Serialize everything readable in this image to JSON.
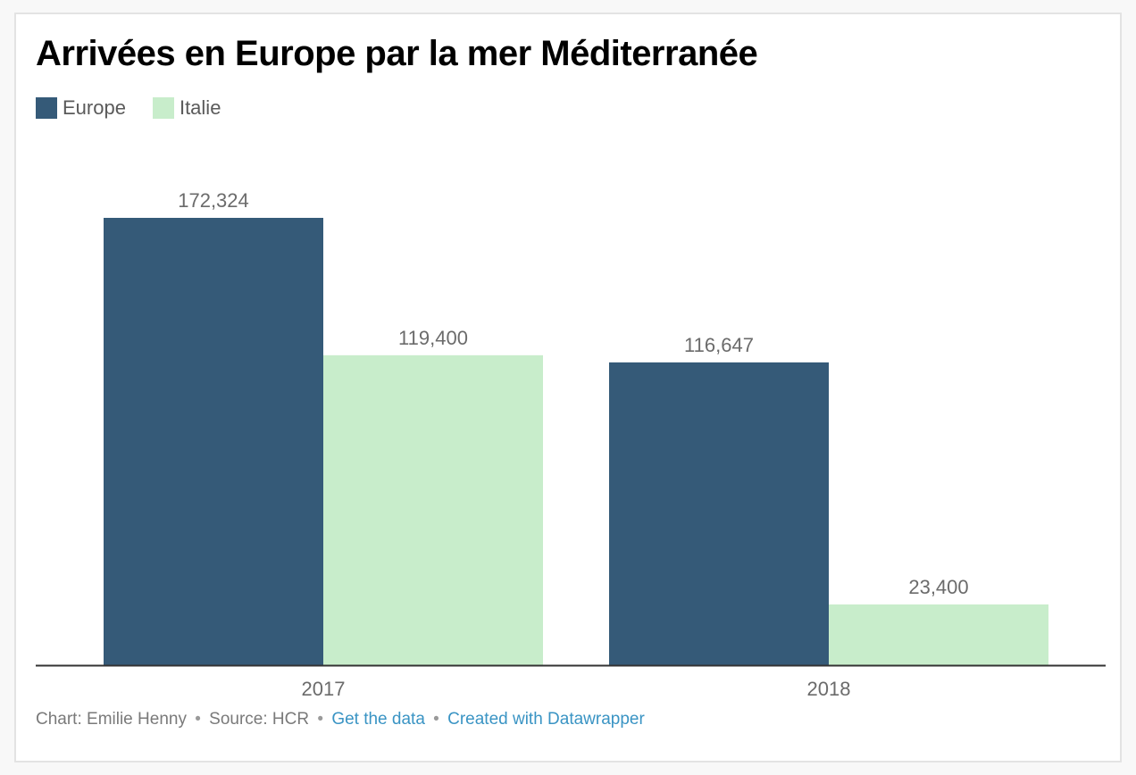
{
  "colors": {
    "europe": "#355a78",
    "italie": "#c8edcb",
    "axis": "#333333",
    "value_label": "#6b6b6b"
  },
  "chart_data": {
    "type": "bar",
    "title": "Arrivées en Europe par la mer Méditerranée",
    "categories": [
      "2017",
      "2018"
    ],
    "series": [
      {
        "name": "Europe",
        "color": "#355a78",
        "values": [
          172324,
          116647
        ],
        "labels": [
          "172,324",
          "116,647"
        ]
      },
      {
        "name": "Italie",
        "color": "#c8edcb",
        "values": [
          119400,
          23400
        ],
        "labels": [
          "119,400",
          "23,400"
        ]
      }
    ],
    "xlabel": "",
    "ylabel": "",
    "ylim": [
      0,
      172324
    ],
    "grid": false,
    "legend": "top-left"
  },
  "footer": {
    "chart_by": "Chart: Emilie Henny",
    "source": "Source: HCR",
    "get_data": "Get the data",
    "created_with": "Created with Datawrapper",
    "separator": "•"
  }
}
